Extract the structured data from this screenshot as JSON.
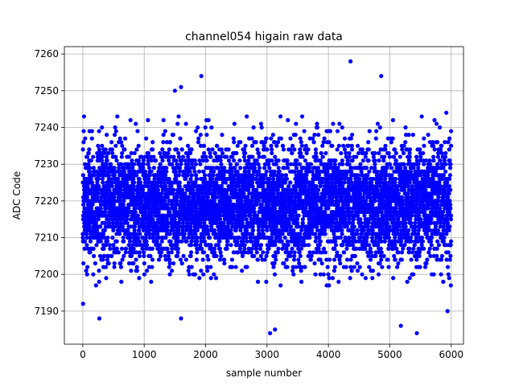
{
  "chart_data": {
    "type": "scatter",
    "title": "channel054 higain raw data",
    "xlabel": "sample number",
    "ylabel": "ADC Code",
    "xlim": [
      -300,
      6200
    ],
    "ylim": [
      7181,
      7262
    ],
    "xticks": [
      0,
      1000,
      2000,
      3000,
      4000,
      5000,
      6000
    ],
    "yticks": [
      7190,
      7200,
      7210,
      7220,
      7230,
      7240,
      7250,
      7260
    ],
    "grid": true,
    "marker_color": "#0000ff",
    "n_points": 6000,
    "typical_range": [
      7197,
      7244
    ],
    "center": 7219,
    "notable_points": [
      {
        "x": 5,
        "y": 7192
      },
      {
        "x": 270,
        "y": 7188
      },
      {
        "x": 1500,
        "y": 7250
      },
      {
        "x": 1600,
        "y": 7251
      },
      {
        "x": 1600,
        "y": 7188
      },
      {
        "x": 1930,
        "y": 7254
      },
      {
        "x": 3050,
        "y": 7184
      },
      {
        "x": 3130,
        "y": 7185
      },
      {
        "x": 4360,
        "y": 7258
      },
      {
        "x": 4860,
        "y": 7254
      },
      {
        "x": 5180,
        "y": 7186
      },
      {
        "x": 5440,
        "y": 7184
      },
      {
        "x": 5940,
        "y": 7190
      },
      {
        "x": 5920,
        "y": 7244
      }
    ]
  }
}
